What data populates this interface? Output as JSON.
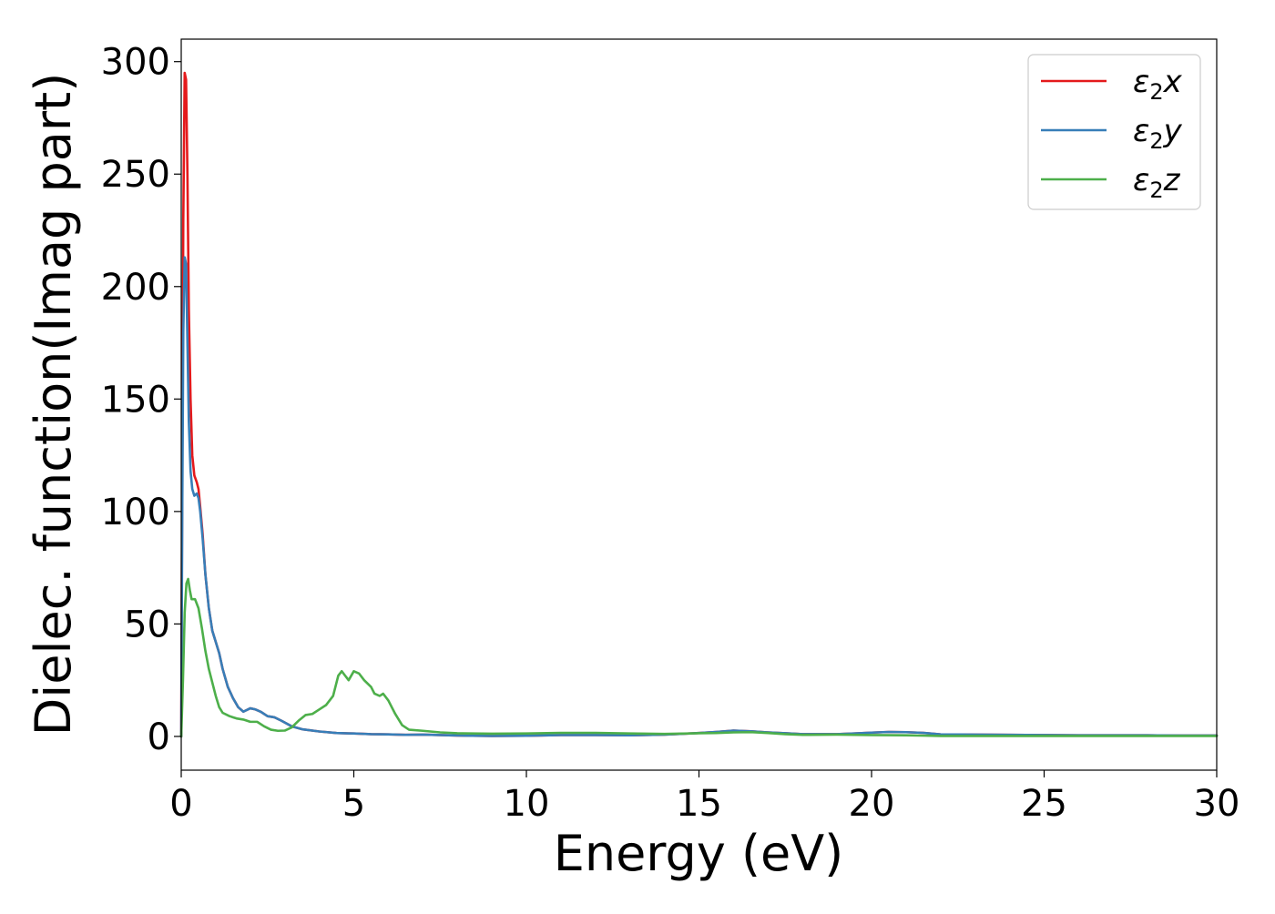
{
  "chart_data": {
    "type": "line",
    "title": "",
    "xlabel": "Energy (eV)",
    "ylabel": "Dielec. function(Imag part)",
    "xlim": [
      0,
      30
    ],
    "ylim": [
      -15,
      310
    ],
    "xticks": [
      0,
      5,
      10,
      15,
      20,
      25,
      30
    ],
    "yticks": [
      0,
      50,
      100,
      150,
      200,
      250,
      300
    ],
    "grid": false,
    "legend_position": "top-right",
    "series": [
      {
        "name_base": "ε",
        "name_sub": "2",
        "name_suffix": "x",
        "color": "#e41a1c",
        "points": [
          [
            0,
            0
          ],
          [
            0.03,
            120
          ],
          [
            0.06,
            230
          ],
          [
            0.1,
            295
          ],
          [
            0.14,
            292
          ],
          [
            0.18,
            250
          ],
          [
            0.22,
            190
          ],
          [
            0.27,
            150
          ],
          [
            0.32,
            125
          ],
          [
            0.38,
            116
          ],
          [
            0.45,
            113
          ],
          [
            0.5,
            110
          ],
          [
            0.55,
            102
          ],
          [
            0.62,
            90
          ],
          [
            0.7,
            72
          ],
          [
            0.8,
            57
          ],
          [
            0.9,
            47
          ],
          [
            1.0,
            42
          ],
          [
            1.1,
            37
          ],
          [
            1.2,
            30
          ],
          [
            1.35,
            22
          ],
          [
            1.5,
            17
          ],
          [
            1.65,
            13
          ],
          [
            1.8,
            11
          ],
          [
            2.0,
            12.5
          ],
          [
            2.15,
            12
          ],
          [
            2.3,
            11
          ],
          [
            2.5,
            9
          ],
          [
            2.7,
            8.5
          ],
          [
            2.9,
            7
          ],
          [
            3.2,
            4.5
          ],
          [
            3.5,
            3.2
          ],
          [
            4.0,
            2.2
          ],
          [
            4.5,
            1.5
          ],
          [
            5.0,
            1.3
          ],
          [
            5.5,
            1.0
          ],
          [
            6.0,
            0.9
          ],
          [
            6.5,
            0.7
          ],
          [
            7.0,
            0.8
          ],
          [
            7.5,
            0.6
          ],
          [
            8.0,
            0.4
          ],
          [
            9.0,
            0.2
          ],
          [
            10.0,
            0.3
          ],
          [
            11.0,
            0.6
          ],
          [
            12.0,
            0.6
          ],
          [
            13.0,
            0.5
          ],
          [
            14.0,
            0.8
          ],
          [
            15.0,
            1.5
          ],
          [
            15.5,
            2.0
          ],
          [
            16.0,
            2.6
          ],
          [
            16.5,
            2.3
          ],
          [
            17.0,
            1.8
          ],
          [
            17.5,
            1.4
          ],
          [
            18.0,
            1.0
          ],
          [
            19.0,
            1.0
          ],
          [
            19.5,
            1.3
          ],
          [
            20.0,
            1.7
          ],
          [
            20.5,
            2.0
          ],
          [
            21.0,
            1.9
          ],
          [
            21.5,
            1.6
          ],
          [
            22.0,
            0.9
          ],
          [
            23.0,
            0.8
          ],
          [
            24.0,
            0.7
          ],
          [
            25.0,
            0.6
          ],
          [
            26.0,
            0.5
          ],
          [
            27.0,
            0.5
          ],
          [
            28.0,
            0.5
          ],
          [
            29.0,
            0.4
          ],
          [
            30.0,
            0.4
          ]
        ]
      },
      {
        "name_base": "ε",
        "name_sub": "2",
        "name_suffix": "y",
        "color": "#377eb8",
        "points": [
          [
            0,
            0
          ],
          [
            0.03,
            100
          ],
          [
            0.06,
            180
          ],
          [
            0.1,
            213
          ],
          [
            0.14,
            210
          ],
          [
            0.18,
            175
          ],
          [
            0.22,
            140
          ],
          [
            0.27,
            118
          ],
          [
            0.32,
            110
          ],
          [
            0.38,
            107
          ],
          [
            0.45,
            108
          ],
          [
            0.5,
            106
          ],
          [
            0.55,
            100
          ],
          [
            0.62,
            88
          ],
          [
            0.7,
            72
          ],
          [
            0.8,
            57
          ],
          [
            0.9,
            47
          ],
          [
            1.0,
            42
          ],
          [
            1.1,
            37
          ],
          [
            1.2,
            30
          ],
          [
            1.35,
            22
          ],
          [
            1.5,
            17
          ],
          [
            1.65,
            13
          ],
          [
            1.8,
            11
          ],
          [
            2.0,
            12.5
          ],
          [
            2.15,
            12
          ],
          [
            2.3,
            11
          ],
          [
            2.5,
            9
          ],
          [
            2.7,
            8.5
          ],
          [
            2.9,
            7
          ],
          [
            3.2,
            4.5
          ],
          [
            3.5,
            3.2
          ],
          [
            4.0,
            2.2
          ],
          [
            4.5,
            1.5
          ],
          [
            5.0,
            1.3
          ],
          [
            5.5,
            1.0
          ],
          [
            6.0,
            0.9
          ],
          [
            6.5,
            0.7
          ],
          [
            7.0,
            0.8
          ],
          [
            7.5,
            0.6
          ],
          [
            8.0,
            0.4
          ],
          [
            9.0,
            0.2
          ],
          [
            10.0,
            0.3
          ],
          [
            11.0,
            0.6
          ],
          [
            12.0,
            0.6
          ],
          [
            13.0,
            0.5
          ],
          [
            14.0,
            0.8
          ],
          [
            15.0,
            1.5
          ],
          [
            15.5,
            2.0
          ],
          [
            16.0,
            2.6
          ],
          [
            16.5,
            2.3
          ],
          [
            17.0,
            1.8
          ],
          [
            17.5,
            1.4
          ],
          [
            18.0,
            1.0
          ],
          [
            19.0,
            1.0
          ],
          [
            19.5,
            1.3
          ],
          [
            20.0,
            1.7
          ],
          [
            20.5,
            2.0
          ],
          [
            21.0,
            1.9
          ],
          [
            21.5,
            1.6
          ],
          [
            22.0,
            0.9
          ],
          [
            23.0,
            0.8
          ],
          [
            24.0,
            0.7
          ],
          [
            25.0,
            0.6
          ],
          [
            26.0,
            0.5
          ],
          [
            27.0,
            0.5
          ],
          [
            28.0,
            0.5
          ],
          [
            29.0,
            0.4
          ],
          [
            30.0,
            0.4
          ]
        ]
      },
      {
        "name_base": "ε",
        "name_sub": "2",
        "name_suffix": "z",
        "color": "#4daf4a",
        "points": [
          [
            0,
            0
          ],
          [
            0.05,
            25
          ],
          [
            0.1,
            55
          ],
          [
            0.15,
            68
          ],
          [
            0.2,
            70
          ],
          [
            0.25,
            65
          ],
          [
            0.3,
            61
          ],
          [
            0.4,
            61
          ],
          [
            0.5,
            57
          ],
          [
            0.6,
            48
          ],
          [
            0.7,
            38
          ],
          [
            0.8,
            30
          ],
          [
            0.9,
            24
          ],
          [
            1.0,
            18
          ],
          [
            1.1,
            13
          ],
          [
            1.2,
            10.5
          ],
          [
            1.4,
            9
          ],
          [
            1.6,
            8
          ],
          [
            1.8,
            7.5
          ],
          [
            2.0,
            6.5
          ],
          [
            2.2,
            6.5
          ],
          [
            2.4,
            4.5
          ],
          [
            2.6,
            3
          ],
          [
            2.8,
            2.5
          ],
          [
            3.0,
            2.6
          ],
          [
            3.2,
            4
          ],
          [
            3.4,
            7
          ],
          [
            3.6,
            9.5
          ],
          [
            3.8,
            10
          ],
          [
            4.0,
            12
          ],
          [
            4.2,
            14
          ],
          [
            4.4,
            18
          ],
          [
            4.55,
            27
          ],
          [
            4.65,
            29
          ],
          [
            4.75,
            27
          ],
          [
            4.85,
            25
          ],
          [
            5.0,
            29
          ],
          [
            5.15,
            28
          ],
          [
            5.3,
            25
          ],
          [
            5.5,
            22
          ],
          [
            5.6,
            19
          ],
          [
            5.75,
            18
          ],
          [
            5.85,
            19
          ],
          [
            6.0,
            16
          ],
          [
            6.2,
            10
          ],
          [
            6.4,
            5
          ],
          [
            6.6,
            3
          ],
          [
            7.0,
            2.5
          ],
          [
            7.5,
            1.8
          ],
          [
            8.0,
            1.4
          ],
          [
            9.0,
            1.2
          ],
          [
            10.0,
            1.3
          ],
          [
            11.0,
            1.6
          ],
          [
            12.0,
            1.6
          ],
          [
            13.0,
            1.3
          ],
          [
            14.0,
            1.1
          ],
          [
            15.0,
            1.4
          ],
          [
            15.5,
            1.5
          ],
          [
            16.0,
            1.8
          ],
          [
            16.5,
            1.9
          ],
          [
            17.0,
            1.5
          ],
          [
            17.5,
            1.0
          ],
          [
            18.0,
            0.7
          ],
          [
            19.0,
            0.8
          ],
          [
            20.0,
            0.6
          ],
          [
            21.0,
            0.5
          ],
          [
            22.0,
            0.2
          ],
          [
            23.0,
            0.2
          ],
          [
            24.0,
            0.2
          ],
          [
            25.0,
            0.2
          ],
          [
            26.0,
            0.2
          ],
          [
            27.0,
            0.2
          ],
          [
            28.0,
            0.2
          ],
          [
            29.0,
            0.2
          ],
          [
            30.0,
            0.2
          ]
        ]
      }
    ]
  }
}
